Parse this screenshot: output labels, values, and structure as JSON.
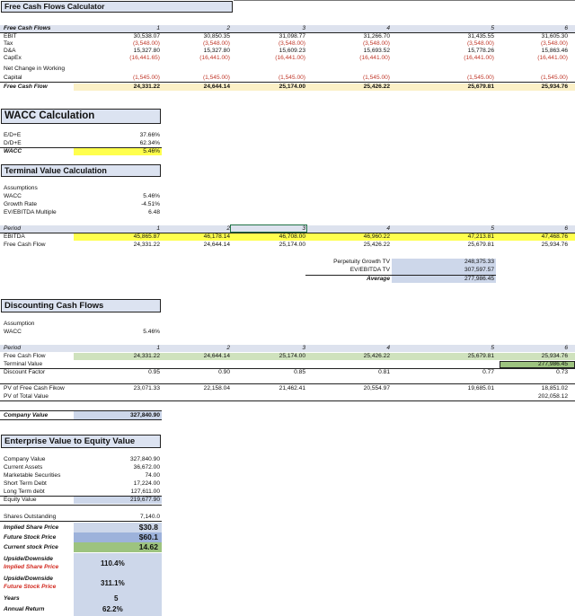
{
  "fcf": {
    "title": "Free Cash Flows Calculator",
    "header_label": "Free Cash Flows",
    "periods": [
      "1",
      "2",
      "3",
      "4",
      "5",
      "6"
    ],
    "rows": [
      {
        "label": "EBIT",
        "values": [
          "30,538.07",
          "30,850.35",
          "31,098.77",
          "31,266.70",
          "31,435.55",
          "31,605.30"
        ]
      },
      {
        "label": "Tax",
        "values": [
          "(3,548.00)",
          "(3,548.00)",
          "(3,548.00)",
          "(3,548.00)",
          "(3,548.00)",
          "(3,548.00)"
        ]
      },
      {
        "label": "D&A",
        "values": [
          "15,327.80",
          "15,327.80",
          "15,609.23",
          "15,693.52",
          "15,778.26",
          "15,863.46"
        ]
      },
      {
        "label": "CapEx",
        "values": [
          "(16,441.65)",
          "(16,441.00)",
          "(16,441.00)",
          "(16,441.00)",
          "(16,441.00)",
          "(16,441.00)"
        ]
      }
    ],
    "nwc_label_1": "Net Change in Working",
    "nwc_label_2": "Capital",
    "nwc_values": [
      "(1,545.00)",
      "(1,545.00)",
      "(1,545.00)",
      "(1,545.00)",
      "(1,545.00)",
      "(1,545.00)"
    ],
    "total_label": "Free Cash Flow",
    "total_values": [
      "24,331.22",
      "24,644.14",
      "25,174.00",
      "25,426.22",
      "25,679.81",
      "25,934.76"
    ]
  },
  "wacc": {
    "title": "WACC Calculation",
    "rows": [
      {
        "label": "E/D+E",
        "value": "37.66%"
      },
      {
        "label": "D/D+E",
        "value": "62.34%"
      }
    ],
    "total_label": "WACC",
    "total_value": "5.46%"
  },
  "tv": {
    "title": "Terminal Value Calculation",
    "assumptions_label": "Assumptions",
    "assumptions": [
      {
        "label": "WACC",
        "value": "5.46%"
      },
      {
        "label": "Growth Rate",
        "value": "-4.51%"
      },
      {
        "label": "EV/EBITDA Multiple",
        "value": "6.48"
      }
    ],
    "period_label": "Period",
    "periods": [
      "1",
      "2",
      "3",
      "4",
      "5",
      "6"
    ],
    "ebitda_label": "EBITDA",
    "ebitda": [
      "45,865.87",
      "46,178.14",
      "46,708.00",
      "46,960.22",
      "47,213.81",
      "47,468.76"
    ],
    "fcf_label": "Free Cash Flow",
    "fcf": [
      "24,331.22",
      "24,644.14",
      "25,174.00",
      "25,426.22",
      "25,679.81",
      "25,934.76"
    ],
    "perp_label": "Perpetuity Growth TV",
    "perp_value": "248,375.33",
    "ev_label": "EV/EBITDA TV",
    "ev_value": "307,597.57",
    "avg_label": "Average",
    "avg_value": "277,986.45"
  },
  "dcf": {
    "title": "Discounting Cash Flows",
    "assumption_label": "Assumption",
    "wacc_label": "WACC",
    "wacc_value": "5.46%",
    "period_label": "Period",
    "periods": [
      "1",
      "2",
      "3",
      "4",
      "5",
      "6"
    ],
    "fcf_label": "Free Cash Flow",
    "fcf": [
      "24,331.22",
      "24,644.14",
      "25,174.00",
      "25,426.22",
      "25,679.81",
      "25,934.76"
    ],
    "tv_label": "Terminal Value",
    "tv_value": "277,986.45",
    "df_label": "Discount Factor",
    "df": [
      "0.95",
      "0.90",
      "0.85",
      "0.81",
      "0.77",
      "0.73"
    ],
    "pv_label": "PV of Free Cash Fikow",
    "pv": [
      "23,071.33",
      "22,158.04",
      "21,462.41",
      "20,554.97",
      "19,685.01",
      "18,851.02"
    ],
    "pvtv_label": "PV of Total Value",
    "pvtv_value": "202,058.12",
    "company_label": "Company Value",
    "company_value": "327,840.90"
  },
  "ev": {
    "title": "Enterprise Value to Equity Value",
    "rows": [
      {
        "label": "Company Value",
        "value": "327,840.90"
      },
      {
        "label": "Current Assets",
        "value": "36,672.00"
      },
      {
        "label": "Marketable Securities",
        "value": "74.00"
      },
      {
        "label": "Short Term Debt",
        "value": "17,224.00"
      },
      {
        "label": "Long Term debt",
        "value": "127,611.00"
      }
    ],
    "equity_label": "Equity Value",
    "equity_value": "219,677.90",
    "shares_label": "Shares Outstanding",
    "shares_value": "7,140.0",
    "implied_label": "Implied Share Price",
    "implied_value": "$30.8",
    "future_label": "Future Stock Price",
    "future_value": "$60.1",
    "current_label": "Current stock Price",
    "current_value": "14.62",
    "ud1_label": "Upside/Downside",
    "ud1_sub": "Implied Share Price",
    "ud1_value": "110.4%",
    "ud2_label": "Upside/Downside",
    "ud2_sub": "Future Stock Price",
    "ud2_value": "311.1%",
    "years_label": "Years",
    "years_value": "5",
    "annual_label": "Annual Return",
    "annual_value": "62.2%"
  }
}
